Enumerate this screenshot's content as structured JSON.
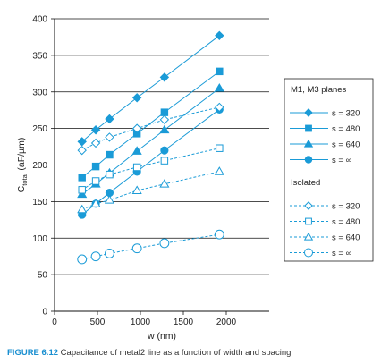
{
  "chart_data": {
    "type": "line",
    "xlabel": "w (nm)",
    "ylabel": "C_total (aF/µm)",
    "ylabel_main": "C",
    "ylabel_sub": "total",
    "ylabel_unit": " (aF/µm)",
    "xlim": [
      0,
      2500
    ],
    "ylim": [
      0,
      400
    ],
    "xticks": [
      0,
      500,
      1000,
      1500,
      2000
    ],
    "yticks": [
      0,
      50,
      100,
      150,
      200,
      250,
      300,
      350,
      400
    ],
    "grid": "horizontal",
    "legend_placement": "right",
    "legend_groups": [
      {
        "title": "M1, M3 planes",
        "series": [
          0,
          1,
          2,
          3
        ]
      },
      {
        "title": "Isolated",
        "series": [
          4,
          5,
          6,
          7
        ]
      }
    ],
    "series": [
      {
        "name": "s = 320",
        "group": "M1, M3 planes",
        "marker": "diamond",
        "filled": true,
        "dashed": false,
        "x": [
          320,
          480,
          640,
          960,
          1280,
          1920
        ],
        "y": [
          232,
          248,
          263,
          292,
          320,
          377
        ]
      },
      {
        "name": "s = 480",
        "group": "M1, M3 planes",
        "marker": "square",
        "filled": true,
        "dashed": false,
        "x": [
          320,
          480,
          640,
          960,
          1280,
          1920
        ],
        "y": [
          183,
          198,
          214,
          243,
          272,
          328
        ]
      },
      {
        "name": "s = 640",
        "group": "M1, M3 planes",
        "marker": "triangle",
        "filled": true,
        "dashed": false,
        "x": [
          320,
          480,
          640,
          960,
          1280,
          1920
        ],
        "y": [
          160,
          174,
          189,
          219,
          248,
          305
        ]
      },
      {
        "name": "s = ∞",
        "group": "M1, M3 planes",
        "marker": "circle",
        "filled": true,
        "dashed": false,
        "x": [
          320,
          480,
          640,
          960,
          1280,
          1920
        ],
        "y": [
          132,
          147,
          162,
          191,
          220,
          276
        ]
      },
      {
        "name": "s = 320",
        "group": "Isolated",
        "marker": "diamond",
        "filled": false,
        "dashed": true,
        "x": [
          320,
          480,
          640,
          960,
          1280,
          1920
        ],
        "y": [
          220,
          230,
          238,
          250,
          262,
          279
        ]
      },
      {
        "name": "s = 480",
        "group": "Isolated",
        "marker": "square",
        "filled": false,
        "dashed": true,
        "x": [
          320,
          480,
          640,
          960,
          1280,
          1920
        ],
        "y": [
          166,
          178,
          187,
          197,
          206,
          223
        ]
      },
      {
        "name": "s = 640",
        "group": "Isolated",
        "marker": "triangle",
        "filled": false,
        "dashed": true,
        "x": [
          320,
          480,
          640,
          960,
          1280,
          1920
        ],
        "y": [
          139,
          147,
          152,
          165,
          174,
          191
        ]
      },
      {
        "name": "s = ∞",
        "group": "Isolated",
        "marker": "circle",
        "filled": false,
        "dashed": true,
        "x": [
          320,
          480,
          640,
          960,
          1280,
          1920
        ],
        "y": [
          71,
          75,
          79,
          86,
          93,
          105
        ]
      }
    ]
  },
  "caption": {
    "label": "FIGURE 6.12",
    "text": "Capacitance of metal2 line as a function of width and spacing"
  },
  "colors": {
    "series": "#1a9bd7",
    "grid": "#111111",
    "caption_label": "#1a8fd0"
  }
}
